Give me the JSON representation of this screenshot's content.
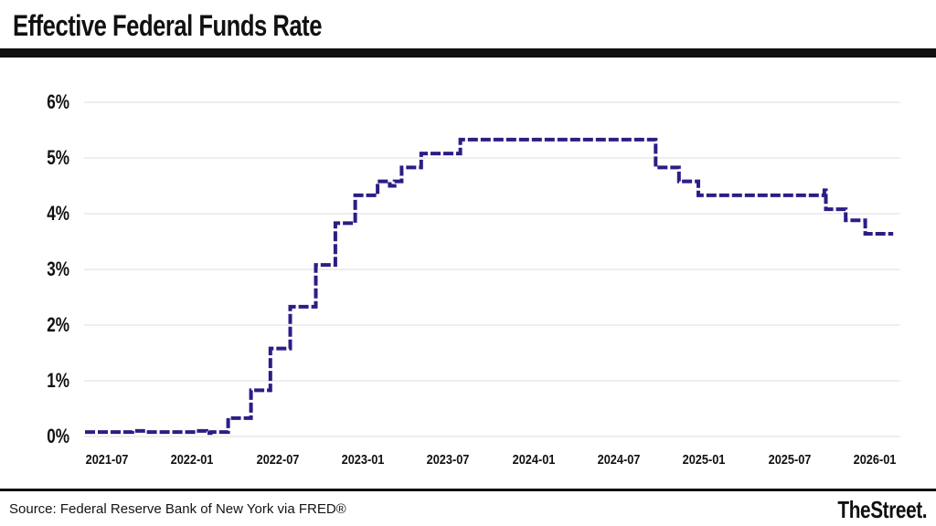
{
  "header": {
    "title": "Effective Federal Funds Rate"
  },
  "footer": {
    "source": "Source: Federal Reserve Bank of New York via FRED®",
    "brand": "TheStreet."
  },
  "colors": {
    "line": "#2a1e85",
    "gridline": "#e8e8e8",
    "bars": "#101010",
    "text": "#111111"
  },
  "chart_data": {
    "type": "line",
    "subtype": "step-after",
    "title": "Effective Federal Funds Rate",
    "xlabel": "",
    "ylabel": "",
    "unit": "%",
    "ylim": [
      0,
      6
    ],
    "xlim": [
      "2021-05",
      "2026-02"
    ],
    "grid": "horizontal",
    "legend_position": "none",
    "line_style": "dashed",
    "y_tick_labels": [
      "0%",
      "1%",
      "2%",
      "3%",
      "4%",
      "5%",
      "6%"
    ],
    "y_tick_values": [
      0,
      1,
      2,
      3,
      4,
      5,
      6
    ],
    "x_tick_labels": [
      "2021-07",
      "2022-01",
      "2022-07",
      "2023-01",
      "2023-07",
      "2024-01",
      "2024-07",
      "2025-01",
      "2025-07",
      "2026-01"
    ],
    "series": [
      {
        "name": "Effective Federal Funds Rate (%)",
        "step": "after",
        "points": [
          [
            "2021-05-15",
            0.08
          ],
          [
            "2021-08-25",
            0.1
          ],
          [
            "2021-09-25",
            0.08
          ],
          [
            "2022-01-10",
            0.1
          ],
          [
            "2022-02-01",
            0.06
          ],
          [
            "2022-02-10",
            0.08
          ],
          [
            "2022-03-17",
            0.33
          ],
          [
            "2022-05-05",
            0.83
          ],
          [
            "2022-06-16",
            1.58
          ],
          [
            "2022-07-28",
            2.33
          ],
          [
            "2022-09-22",
            3.08
          ],
          [
            "2022-11-03",
            3.83
          ],
          [
            "2022-12-15",
            4.33
          ],
          [
            "2023-02-02",
            4.58
          ],
          [
            "2023-02-28",
            4.5
          ],
          [
            "2023-03-08",
            4.58
          ],
          [
            "2023-03-23",
            4.83
          ],
          [
            "2023-05-04",
            5.08
          ],
          [
            "2023-07-27",
            5.33
          ],
          [
            "2024-09-19",
            4.83
          ],
          [
            "2024-11-08",
            4.58
          ],
          [
            "2024-12-19",
            4.33
          ],
          [
            "2025-09-15",
            4.42
          ],
          [
            "2025-09-18",
            4.08
          ],
          [
            "2025-10-30",
            3.88
          ],
          [
            "2025-12-11",
            3.64
          ],
          [
            "2026-02-10",
            3.64
          ]
        ]
      }
    ]
  }
}
